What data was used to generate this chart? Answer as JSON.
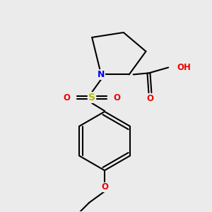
{
  "background_color": "#ebebeb",
  "atom_colors": {
    "N": "#0000ee",
    "O": "#ee0000",
    "S": "#bbbb00",
    "C": "#000000",
    "H": "#888888"
  },
  "line_color": "#000000",
  "line_width": 1.5,
  "font_size": 8.5,
  "fig_size": [
    3.0,
    3.0
  ],
  "dpi": 100
}
